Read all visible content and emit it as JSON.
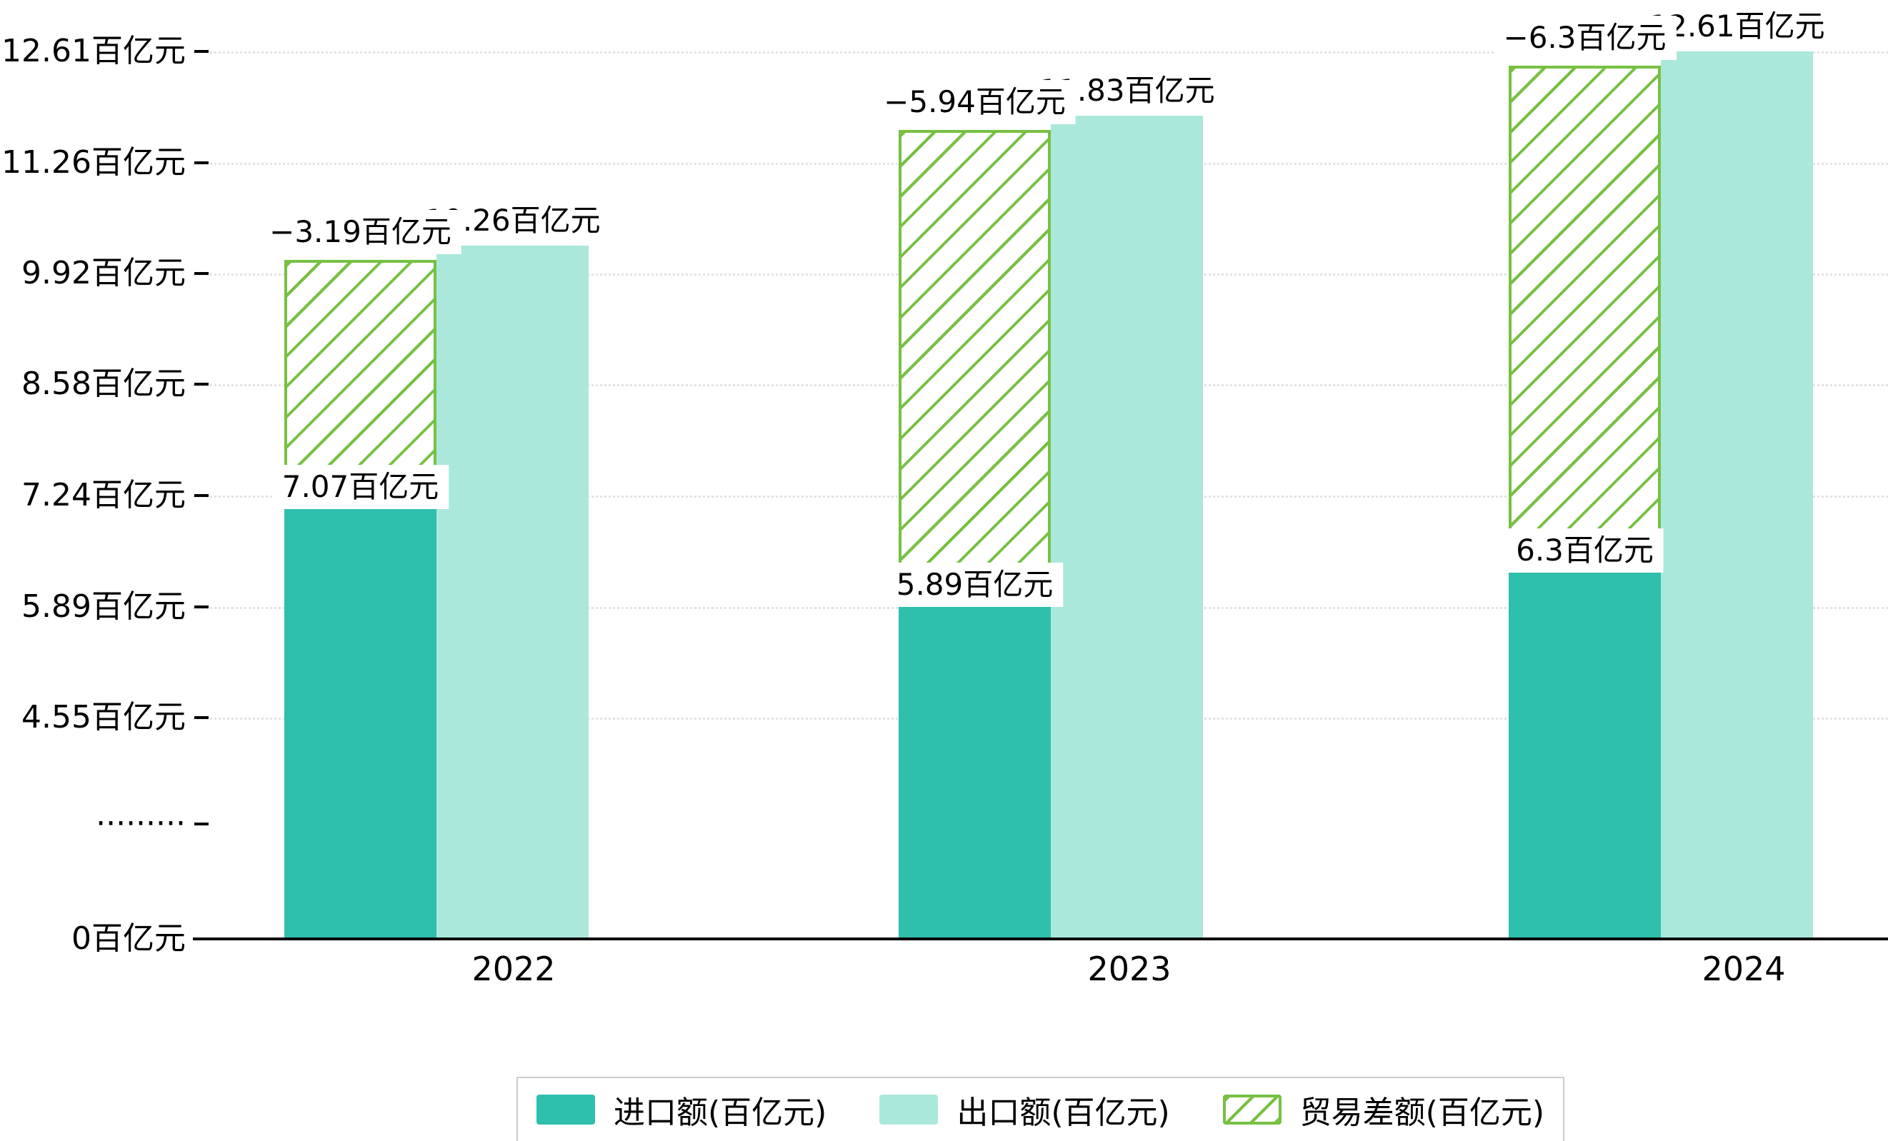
{
  "chart_data": {
    "type": "bar",
    "categories": [
      "2022",
      "2023",
      "2024"
    ],
    "series": [
      {
        "name": "进口额(百亿元)",
        "values": [
          7.07,
          5.89,
          6.3
        ],
        "data_labels": [
          "7.07百亿元",
          "5.89百亿元",
          "6.3百亿元"
        ],
        "color": "#2ebfad",
        "style": "solid"
      },
      {
        "name": "出口额(百亿元)",
        "values": [
          10.26,
          11.83,
          12.61
        ],
        "data_labels": [
          "10.26百亿元",
          "11.83百亿元",
          "12.61百亿元"
        ],
        "color": "#abe8dc",
        "style": "solid"
      },
      {
        "name": "贸易差额(百亿元)",
        "values": [
          -3.19,
          -5.94,
          -6.3
        ],
        "data_labels": [
          "−3.19百亿元",
          "−5.94百亿元",
          "−6.3百亿元"
        ],
        "color": "#77c043",
        "style": "hatched"
      }
    ],
    "y_axis": {
      "unit": "百亿元",
      "ticks": [
        {
          "label": "12.61百亿元",
          "value": 12.61
        },
        {
          "label": "11.26百亿元",
          "value": 11.26
        },
        {
          "label": "9.92百亿元",
          "value": 9.92
        },
        {
          "label": "8.58百亿元",
          "value": 8.58
        },
        {
          "label": "7.24百亿元",
          "value": 7.24
        },
        {
          "label": "5.89百亿元",
          "value": 5.89
        },
        {
          "label": "4.55百亿元",
          "value": 4.55
        },
        {
          "label": "·········",
          "value": null
        },
        {
          "label": "0百亿元",
          "value": 0
        }
      ],
      "axis_break": true
    },
    "x_axis": {
      "labels": [
        "2022",
        "2023",
        "2024"
      ]
    },
    "legend": {
      "position": "bottom",
      "items": [
        "进口额(百亿元)",
        "出口额(百亿元)",
        "贸易差额(百亿元)"
      ]
    },
    "ylim": [
      0,
      12.61
    ],
    "grid": true
  },
  "colors": {
    "import": "#2ebfad",
    "export": "#abe8dc",
    "balance": "#77c043",
    "grid": "#e3e3e3",
    "axis": "#000000",
    "background": "#ffffff"
  }
}
